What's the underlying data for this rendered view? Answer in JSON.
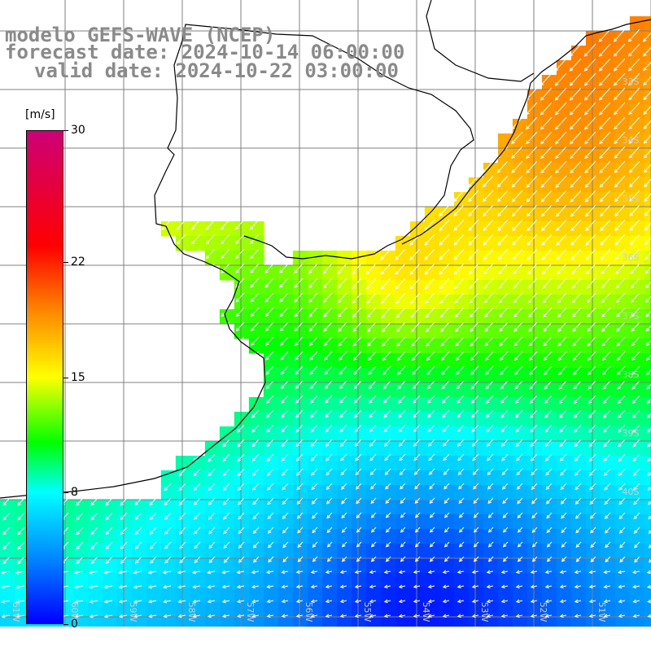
{
  "title": {
    "line1": "modelo GEFS-WAVE (NCEP)",
    "line2": "forecast date: 2024-10-14 06:00:00",
    "line3": "valid date: 2024-10-22 03:00:00"
  },
  "colorbar": {
    "unit": "[m/s]",
    "ticks": [
      "30",
      "22",
      "15",
      "8",
      "0"
    ],
    "tick_values": [
      30,
      22,
      15,
      8,
      0
    ],
    "range": [
      0,
      30
    ],
    "stops": [
      {
        "value": 0,
        "color": "#0000ff"
      },
      {
        "value": 4,
        "color": "#0088ff"
      },
      {
        "value": 8,
        "color": "#00ffff"
      },
      {
        "value": 11,
        "color": "#00ff00"
      },
      {
        "value": 15,
        "color": "#ffff00"
      },
      {
        "value": 19,
        "color": "#ff8800"
      },
      {
        "value": 23,
        "color": "#ff0000"
      },
      {
        "value": 30,
        "color": "#cc0077"
      }
    ]
  },
  "map": {
    "lat_labels": [
      "33S",
      "34S",
      "35S",
      "36S",
      "37S",
      "38S",
      "39S",
      "40S"
    ],
    "lon_labels": [
      "61W",
      "60W",
      "59W",
      "58W",
      "57W",
      "56W",
      "55W",
      "54W",
      "53W",
      "52W",
      "51W"
    ],
    "wind_direction": "from northeast",
    "colors": {
      "land": "#ffffff",
      "coast": "#000000",
      "grid": "#808080",
      "arrow": "#ffffff"
    }
  }
}
